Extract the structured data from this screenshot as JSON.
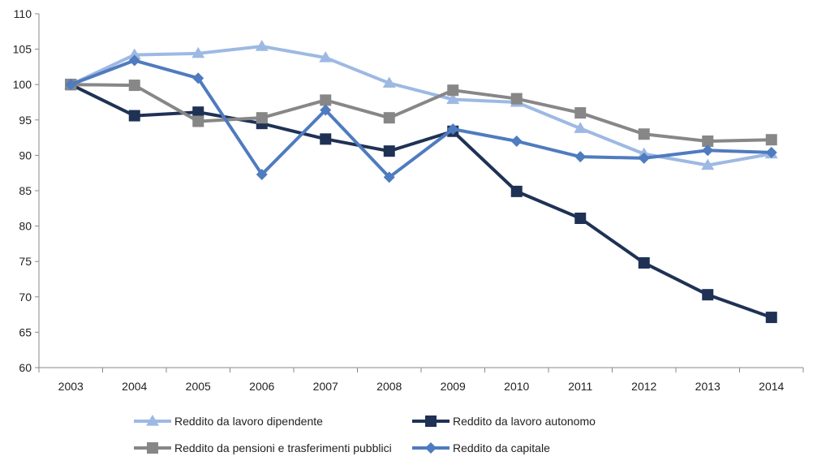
{
  "chart_data": {
    "type": "line",
    "title": "",
    "xlabel": "",
    "ylabel": "",
    "x": [
      "2003",
      "2004",
      "2005",
      "2006",
      "2007",
      "2008",
      "2009",
      "2010",
      "2011",
      "2012",
      "2013",
      "2014"
    ],
    "ylim": [
      60,
      110
    ],
    "yticks": [
      60,
      65,
      70,
      75,
      80,
      85,
      90,
      95,
      100,
      105,
      110
    ],
    "grid": false,
    "legend_position": "bottom",
    "series": [
      {
        "name": "Reddito da lavoro dipendente",
        "color": "#9DB9E3",
        "marker": "triangle",
        "values": [
          100,
          104.2,
          104.4,
          105.4,
          103.8,
          100.2,
          97.9,
          97.5,
          93.8,
          90.2,
          88.6,
          90.2
        ]
      },
      {
        "name": "Reddito da lavoro autonomo",
        "color": "#1F3255",
        "marker": "square",
        "values": [
          100,
          95.6,
          96.1,
          94.5,
          92.3,
          90.6,
          93.4,
          84.9,
          81.1,
          74.8,
          70.3,
          67.1
        ]
      },
      {
        "name": "Reddito da pensioni e trasferimenti pubblici",
        "color": "#878787",
        "marker": "square",
        "values": [
          100,
          99.9,
          94.8,
          95.3,
          97.8,
          95.3,
          99.2,
          98.0,
          96.0,
          93.0,
          92.0,
          92.2
        ]
      },
      {
        "name": "Reddito da capitale",
        "color": "#4F7BBF",
        "marker": "diamond",
        "values": [
          100,
          103.4,
          100.9,
          87.3,
          96.4,
          86.9,
          93.7,
          92.0,
          89.8,
          89.6,
          90.7,
          90.4
        ]
      }
    ]
  }
}
